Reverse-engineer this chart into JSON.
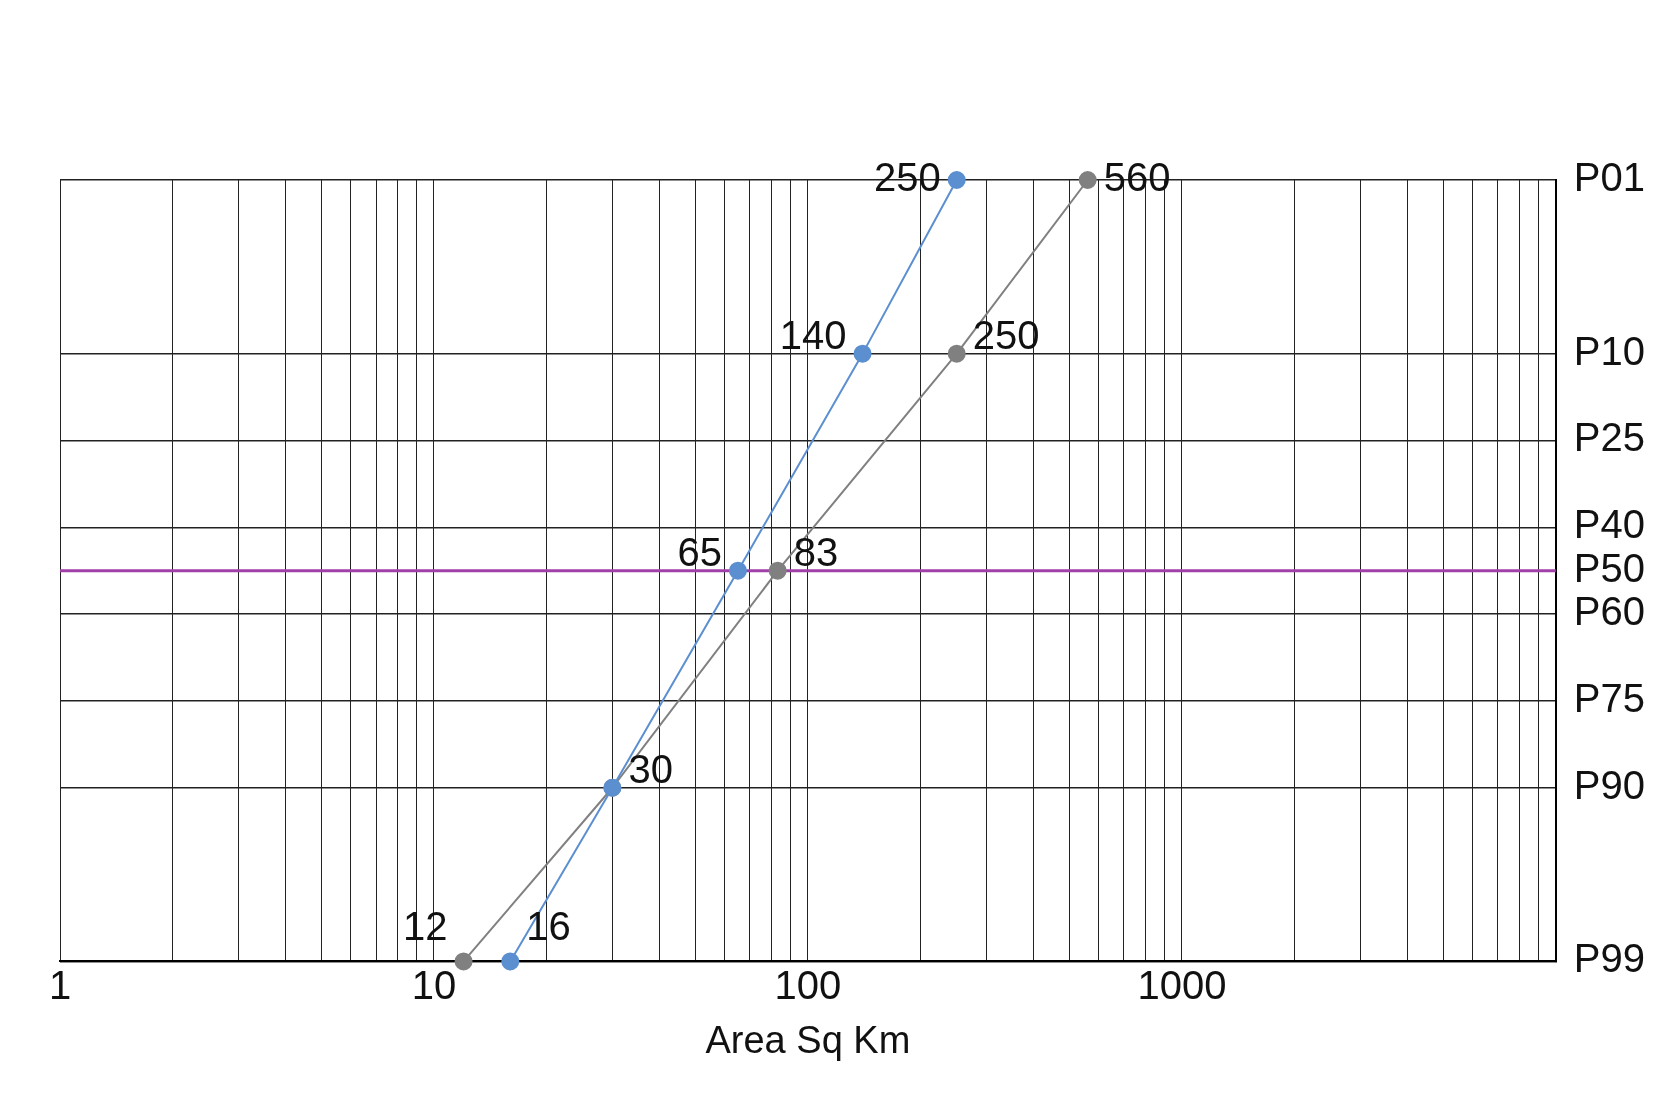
{
  "chart_data": {
    "type": "line",
    "orientation": "horizontal",
    "xlabel": "Area Sq Km",
    "log": "x",
    "xlim": [
      1,
      10000
    ],
    "categories": [
      "P01",
      null,
      null,
      null,
      "P10",
      null,
      "P25",
      null,
      "P40",
      "P50",
      "P60",
      null,
      "P75",
      null,
      "P90",
      null,
      null,
      null,
      "P99"
    ],
    "xticks": [
      1,
      {
        "value": 2,
        "label": null
      },
      {
        "value": 3,
        "label": null
      },
      {
        "value": 4,
        "label": null
      },
      {
        "value": 5,
        "label": null
      },
      {
        "value": 6,
        "label": null
      },
      {
        "value": 7,
        "label": null
      },
      {
        "value": 8,
        "label": null
      },
      {
        "value": 9,
        "label": null
      },
      10,
      {
        "value": 20,
        "label": null
      },
      {
        "value": 30,
        "label": null
      },
      {
        "value": 40,
        "label": null
      },
      {
        "value": 50,
        "label": null
      },
      {
        "value": 60,
        "label": null
      },
      {
        "value": 70,
        "label": null
      },
      {
        "value": 80,
        "label": null
      },
      {
        "value": 90,
        "label": null
      },
      100,
      {
        "value": 200,
        "label": null
      },
      {
        "value": 300,
        "label": null
      },
      {
        "value": 400,
        "label": null
      },
      {
        "value": 500,
        "label": null
      },
      {
        "value": 600,
        "label": null
      },
      {
        "value": 700,
        "label": null
      },
      {
        "value": 800,
        "label": null
      },
      {
        "value": 900,
        "label": null
      },
      1000,
      {
        "value": 2000,
        "label": null
      },
      {
        "value": 3000,
        "label": null
      },
      {
        "value": 4000,
        "label": null
      },
      {
        "value": 5000,
        "label": null
      },
      {
        "value": 6000,
        "label": null
      },
      {
        "value": 7000,
        "label": null
      },
      {
        "value": 8000,
        "label": null
      },
      {
        "value": 9000,
        "label": null
      },
      {
        "value": 10000,
        "label": null
      }
    ],
    "grid": true,
    "marker": "circle",
    "line_style": "solid",
    "series": [
      {
        "color": "#5b8fd0",
        "values": [
          250,
          null,
          null,
          null,
          140,
          null,
          null,
          null,
          null,
          65,
          null,
          null,
          null,
          null,
          30,
          null,
          null,
          null,
          16
        ],
        "value_labels": [
          "250",
          null,
          null,
          null,
          "140",
          null,
          null,
          null,
          null,
          "65",
          null,
          null,
          null,
          null,
          null,
          null,
          null,
          null,
          "16"
        ]
      },
      {
        "color": "#808080",
        "values": [
          560,
          null,
          null,
          null,
          250,
          null,
          null,
          null,
          null,
          83,
          null,
          null,
          null,
          null,
          30,
          null,
          null,
          null,
          12
        ],
        "value_labels": [
          "560",
          null,
          null,
          null,
          "250",
          null,
          null,
          null,
          null,
          "83",
          null,
          null,
          null,
          null,
          "30",
          null,
          null,
          null,
          "12"
        ]
      }
    ],
    "ref_lines": [
      {
        "axis": "y",
        "value": "P50",
        "color": "#a040a8"
      }
    ]
  }
}
